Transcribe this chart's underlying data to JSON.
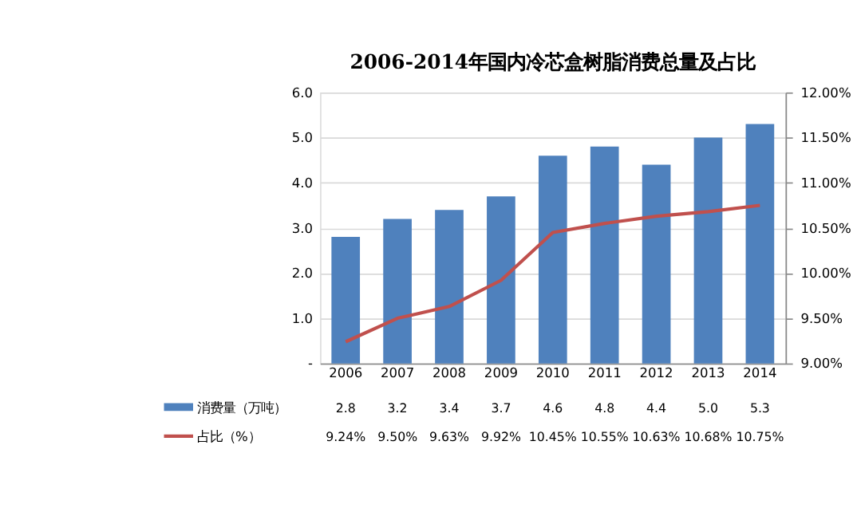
{
  "chart_data": {
    "type": "bar",
    "title": "2006-2014年国内冷芯盒树脂消费总量及占比",
    "categories": [
      "2006",
      "2007",
      "2008",
      "2009",
      "2010",
      "2011",
      "2012",
      "2013",
      "2014"
    ],
    "series": [
      {
        "name": "消费量（万吨）",
        "color": "#4f81bd",
        "values": [
          2.8,
          3.2,
          3.4,
          3.7,
          4.6,
          4.8,
          4.4,
          5.0,
          5.3
        ],
        "value_labels": [
          "2.8",
          "3.2",
          "3.4",
          "3.7",
          "4.6",
          "4.8",
          "4.4",
          "5.0",
          "5.3"
        ]
      },
      {
        "name": "占比（%）",
        "type": "line",
        "axis": "y2",
        "color": "#c0504d",
        "values": [
          9.24,
          9.5,
          9.63,
          9.92,
          10.45,
          10.55,
          10.63,
          10.68,
          10.75
        ],
        "value_labels": [
          "9.24%",
          "9.50%",
          "9.63%",
          "9.92%",
          "10.45%",
          "10.55%",
          "10.63%",
          "10.68%",
          "10.75%"
        ]
      }
    ],
    "ylim": [
      0,
      6
    ],
    "yticks": [
      {
        "value": 0,
        "label": "-"
      },
      {
        "value": 1,
        "label": "1.0"
      },
      {
        "value": 2,
        "label": "2.0"
      },
      {
        "value": 3,
        "label": "3.0"
      },
      {
        "value": 4,
        "label": "4.0"
      },
      {
        "value": 5,
        "label": "5.0"
      },
      {
        "value": 6,
        "label": "6.0"
      }
    ],
    "y2lim": [
      9,
      12
    ],
    "y2ticks": [
      {
        "value": 9,
        "label": "9.00%"
      },
      {
        "value": 9.5,
        "label": "9.50%"
      },
      {
        "value": 10,
        "label": "10.00%"
      },
      {
        "value": 10.5,
        "label": "10.50%"
      },
      {
        "value": 11,
        "label": "11.00%"
      },
      {
        "value": 11.5,
        "label": "11.50%"
      },
      {
        "value": 12,
        "label": "12.00%"
      }
    ],
    "grid": "y",
    "legend": "bottom left",
    "marker": "none",
    "line_style": "solid"
  }
}
